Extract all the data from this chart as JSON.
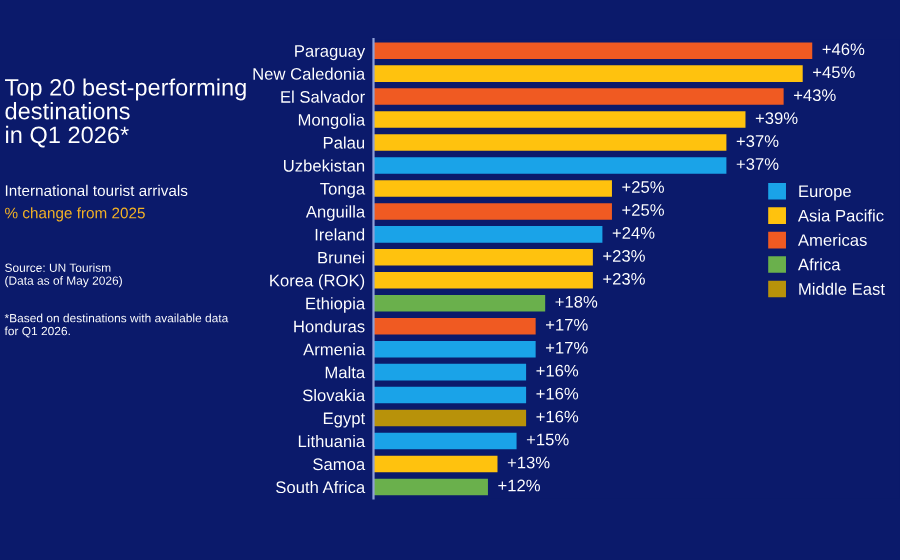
{
  "chart_data": {
    "type": "bar",
    "orientation": "horizontal",
    "title": "Top 20 best-performing\ndestinations\nin Q1 2026*",
    "subtitle": "International tourist arrivals",
    "annotations": [
      "% change from 2025",
      "Source: UN Tourism\n(Data as of May 2026)",
      "*Based on destinations with available data\nfor Q1 2026."
    ],
    "categories": [
      "Paraguay",
      "New Caledonia",
      "El Salvador",
      "Mongolia",
      "Palau",
      "Uzbekistan",
      "Tonga",
      "Anguilla",
      "Ireland",
      "Brunei",
      "Korea (ROK)",
      "Ethiopia",
      "Honduras",
      "Armenia",
      "Malta",
      "Slovakia",
      "Egypt",
      "Lithuania",
      "Samoa",
      "South Africa"
    ],
    "series": [
      {
        "name": "Europe",
        "color": "#1aa3e8",
        "values": [
          null,
          null,
          null,
          null,
          null,
          37,
          null,
          null,
          24,
          null,
          null,
          null,
          null,
          17,
          16,
          16,
          null,
          15,
          null,
          null
        ],
        "value_labels": [
          null,
          null,
          null,
          null,
          null,
          "+37%",
          null,
          null,
          "+24%",
          null,
          null,
          null,
          null,
          "+17%",
          "+16%",
          "+16%",
          null,
          "+15%",
          null,
          null
        ]
      },
      {
        "name": "Asia Pacific",
        "color": "#ffc20e",
        "values": [
          null,
          45,
          null,
          39,
          37,
          null,
          25,
          null,
          null,
          23,
          23,
          null,
          null,
          null,
          null,
          null,
          null,
          null,
          13,
          null
        ],
        "value_labels": [
          null,
          "+45%",
          null,
          "+39%",
          "+37%",
          null,
          "+25%",
          null,
          null,
          "+23%",
          "+23%",
          null,
          null,
          null,
          null,
          null,
          null,
          null,
          "+13%",
          null
        ]
      },
      {
        "name": "Americas",
        "color": "#f05a22",
        "values": [
          46,
          null,
          43,
          null,
          null,
          null,
          null,
          25,
          null,
          null,
          null,
          null,
          17,
          null,
          null,
          null,
          null,
          null,
          null,
          null
        ],
        "value_labels": [
          "+46%",
          null,
          "+43%",
          null,
          null,
          null,
          null,
          "+25%",
          null,
          null,
          null,
          null,
          "+17%",
          null,
          null,
          null,
          null,
          null,
          null,
          null
        ]
      },
      {
        "name": "Africa",
        "color": "#6ab04c",
        "values": [
          null,
          null,
          null,
          null,
          null,
          null,
          null,
          null,
          null,
          null,
          null,
          18,
          null,
          null,
          null,
          null,
          null,
          null,
          null,
          12
        ],
        "value_labels": [
          null,
          null,
          null,
          null,
          null,
          null,
          null,
          null,
          null,
          null,
          null,
          "+18%",
          null,
          null,
          null,
          null,
          null,
          null,
          null,
          "+12%"
        ]
      },
      {
        "name": "Middle East",
        "color": "#b8920a",
        "values": [
          null,
          null,
          null,
          null,
          null,
          null,
          null,
          null,
          null,
          null,
          null,
          null,
          null,
          null,
          null,
          null,
          16,
          null,
          null,
          null
        ],
        "value_labels": [
          null,
          null,
          null,
          null,
          null,
          null,
          null,
          null,
          null,
          null,
          null,
          null,
          null,
          null,
          null,
          null,
          "+16%",
          null,
          null,
          null
        ]
      }
    ],
    "legend": "right",
    "grid": false
  }
}
